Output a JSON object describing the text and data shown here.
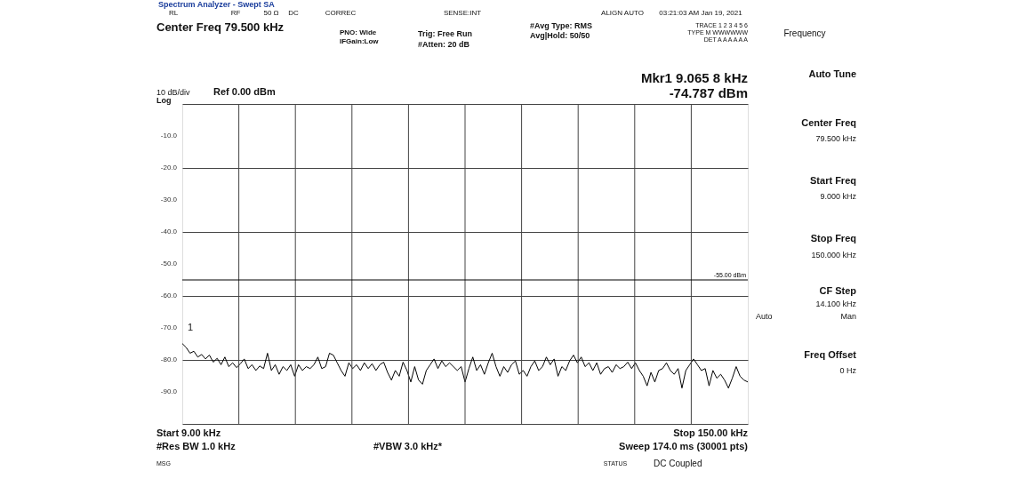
{
  "chart_data": {
    "type": "line",
    "title": "Spectrum Analyzer - Swept SA",
    "categories": [
      null,
      null,
      null,
      null,
      null,
      null,
      null,
      null,
      null,
      null,
      null,
      null,
      null,
      null,
      null,
      null,
      null,
      null,
      null,
      null,
      null,
      null,
      null,
      null,
      null,
      null,
      null,
      null,
      null,
      null,
      null,
      null,
      null,
      null,
      null,
      null,
      null,
      null,
      null,
      null,
      null,
      null,
      null,
      null,
      null,
      null,
      null,
      null,
      null,
      null,
      null,
      null,
      null,
      null,
      null,
      null,
      null,
      null,
      null,
      null,
      null,
      null,
      null,
      null,
      null,
      null,
      null,
      null,
      null,
      null,
      null,
      null,
      null,
      null,
      null,
      null,
      null,
      null,
      null,
      null,
      null,
      null,
      null,
      null,
      null,
      null,
      null,
      null,
      null,
      null,
      null,
      null,
      null,
      null,
      null,
      null,
      null,
      null,
      null,
      null,
      null,
      null,
      null,
      null,
      null,
      null,
      null,
      null,
      null,
      null,
      null,
      null,
      null,
      null,
      null,
      null,
      null,
      null,
      null,
      null,
      null,
      null,
      null,
      null,
      null,
      null,
      null,
      null,
      null,
      null,
      null,
      null,
      null,
      null,
      null,
      null,
      null,
      null,
      null,
      null,
      null,
      null,
      null,
      null,
      null,
      null,
      null
    ],
    "ylim": [
      -100,
      0
    ],
    "yticks": [
      {
        "value": 0,
        "label": null
      },
      {
        "value": -10,
        "label": "-10.0"
      },
      {
        "value": -20,
        "label": "-20.0"
      },
      {
        "value": -30,
        "label": "-30.0"
      },
      {
        "value": -40,
        "label": "-40.0"
      },
      {
        "value": -50,
        "label": "-50.0"
      },
      {
        "value": -60,
        "label": "-60.0"
      },
      {
        "value": -70,
        "label": "-70.0"
      },
      {
        "value": -80,
        "label": "-80.0"
      },
      {
        "value": -90,
        "label": "-90.0"
      },
      {
        "value": -100,
        "label": null
      }
    ],
    "tick_labels": "y",
    "grid": true,
    "series": [
      {
        "color": "#000000",
        "values": [
          -74.9,
          -76.1,
          -77.9,
          -77.3,
          -79.1,
          -78.3,
          -79.7,
          -78.5,
          -80.7,
          -79.5,
          -81.5,
          -79.1,
          -82.1,
          -80.9,
          -82.4,
          -81.2,
          -79.7,
          -82.7,
          -81.5,
          -83.3,
          -81.9,
          -82.7,
          -77.9,
          -83.3,
          -81.5,
          -84.5,
          -82.1,
          -83.3,
          -81.5,
          -85.1,
          -81.5,
          -83.3,
          -82.1,
          -82.7,
          -81.5,
          -79.1,
          -82.7,
          -82.1,
          -77.9,
          -78.5,
          -80.9,
          -83.3,
          -85.1,
          -80.9,
          -82.7,
          -81.5,
          -83.3,
          -80.9,
          -82.7,
          -81.2,
          -83.3,
          -81.5,
          -80.7,
          -83.9,
          -86.3,
          -83.3,
          -85.1,
          -80.7,
          -83.3,
          -86.9,
          -82.1,
          -86.3,
          -87.6,
          -83.3,
          -81.5,
          -79.7,
          -82.7,
          -80.3,
          -82.1,
          -80.9,
          -82.1,
          -83.3,
          -82.1,
          -86.9,
          -82.7,
          -79.1,
          -83.3,
          -81.5,
          -84.5,
          -80.9,
          -77.9,
          -82.1,
          -85.1,
          -82.1,
          -83.9,
          -81.5,
          -80.3,
          -84.5,
          -83.3,
          -85.1,
          -82.1,
          -80.3,
          -83.3,
          -82.1,
          -79.1,
          -81.5,
          -79.7,
          -85.1,
          -82.1,
          -83.3,
          -80.3,
          -78.5,
          -80.9,
          -79.1,
          -82.1,
          -80.9,
          -83.3,
          -80.9,
          -84.5,
          -82.7,
          -82.1,
          -83.9,
          -81.5,
          -82.7,
          -82.1,
          -80.7,
          -82.7,
          -80.9,
          -83.3,
          -85.1,
          -88.1,
          -83.9,
          -86.9,
          -83.3,
          -82.7,
          -80.9,
          -83.3,
          -84.5,
          -82.7,
          -88.8,
          -83.3,
          -81.5,
          -79.7,
          -81.5,
          -83.3,
          -82.7,
          -88.1,
          -83.3,
          -85.7,
          -84.5,
          -86.3,
          -88.8,
          -85.7,
          -82.1,
          -85.1,
          -86.3,
          -86.9
        ]
      }
    ],
    "ref_lines": [
      {
        "axis": "y",
        "value": -55,
        "label": "-55.00 dBm",
        "color": "#000000"
      }
    ],
    "annotations": [
      "1",
      "RL",
      "RF",
      "50 Ω",
      "DC",
      "CORREC",
      "SENSE:INT",
      "ALIGN AUTO",
      "03:21:03 AM Jan 19, 2021",
      "Center Freq 79.500 kHz",
      "PNO: Wide",
      "IFGain:Low",
      "Trig: Free Run",
      "#Atten: 20 dB",
      "#Avg Type: RMS",
      "Avg|Hold: 50/50",
      "TRACE 1 2 3 4 5 6",
      "TYPE M WWWWWW",
      "DET A A A A A A",
      "Mkr1 9.065 8 kHz",
      "-74.787 dBm",
      "10 dB/div",
      "Log",
      "Ref 0.00 dBm",
      "Start 9.00 kHz",
      "Stop 150.00 kHz",
      "#Res BW 1.0 kHz",
      "#VBW 3.0 kHz*",
      "Sweep  174.0 ms (30001 pts)",
      "MSG",
      "STATUS",
      "DC Coupled",
      "Frequency",
      "Auto Tune",
      "Center Freq",
      "79.500 kHz",
      "Start Freq",
      "9.000 kHz",
      "Stop Freq",
      "150.000 kHz",
      "CF Step",
      "14.100 kHz",
      "Auto",
      "Man",
      "Freq Offset",
      "0 Hz"
    ]
  }
}
